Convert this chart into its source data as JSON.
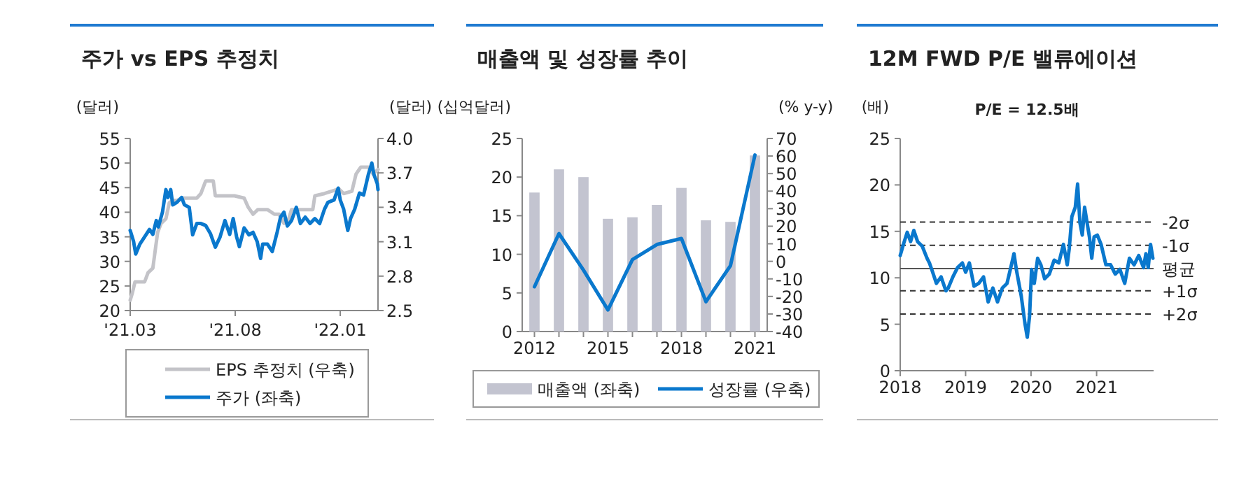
{
  "chart_data": [
    {
      "type": "line",
      "title": "주가 vs EPS 추정치",
      "ylabel": "(달러)",
      "y2label": "(달러)",
      "xlim": [
        "2021-03-01",
        "2022-02-25"
      ],
      "xticks": [
        {
          "value": "2021-03-01",
          "label": "'21.03"
        },
        {
          "value": "2021-08-01",
          "label": "'21.08"
        },
        {
          "value": "2022-01-01",
          "label": "'22.01"
        }
      ],
      "ylim": [
        20,
        55
      ],
      "yticks": [
        20,
        25,
        30,
        35,
        40,
        45,
        50,
        55
      ],
      "y2lim": [
        2.5,
        4.0
      ],
      "y2ticks": [
        2.5,
        2.8,
        3.1,
        3.4,
        3.7,
        {
          "value": 4.0,
          "label": "4.0"
        }
      ],
      "legend": "bottom",
      "grid": false,
      "marker": "none",
      "line_style": "solid",
      "series": [
        {
          "name": "EPS 추정치 (우축)",
          "color": "#c3c3c8",
          "axis": "y2",
          "x": [
            "2021-03-01",
            "2021-03-04",
            "2021-03-08",
            "2021-03-22",
            "2021-03-27",
            "2021-04-03",
            "2021-04-07",
            "2021-04-10",
            "2021-04-15",
            "2021-04-22",
            "2021-04-27",
            "2021-05-02",
            "2021-05-08",
            "2021-05-16",
            "2021-06-06",
            "2021-06-12",
            "2021-06-19",
            "2021-06-30",
            "2021-07-03",
            "2021-07-31",
            "2021-08-14",
            "2021-08-20",
            "2021-08-27",
            "2021-09-03",
            "2021-09-17",
            "2021-09-27",
            "2021-10-04",
            "2021-10-11",
            "2021-10-18",
            "2021-10-22",
            "2021-11-11",
            "2021-11-22",
            "2021-11-25",
            "2021-12-09",
            "2021-12-30",
            "2022-01-06",
            "2022-01-18",
            "2022-01-24",
            "2022-01-31",
            "2022-02-11",
            "2022-02-18",
            "2022-02-25"
          ],
          "values": [
            2.59,
            2.65,
            2.75,
            2.75,
            2.83,
            2.87,
            3.05,
            3.18,
            3.26,
            3.3,
            3.44,
            3.46,
            3.46,
            3.48,
            3.48,
            3.52,
            3.63,
            3.63,
            3.5,
            3.5,
            3.48,
            3.4,
            3.34,
            3.38,
            3.38,
            3.34,
            3.34,
            3.26,
            3.3,
            3.38,
            3.38,
            3.38,
            3.5,
            3.52,
            3.56,
            3.52,
            3.54,
            3.69,
            3.75,
            3.75,
            3.69,
            3.73
          ]
        },
        {
          "name": "주가 (좌축)",
          "color": "#0a78cd",
          "x": [
            "2021-03-01",
            "2021-03-06",
            "2021-03-09",
            "2021-03-15",
            "2021-03-22",
            "2021-03-29",
            "2021-04-03",
            "2021-04-08",
            "2021-04-11",
            "2021-04-17",
            "2021-04-22",
            "2021-04-25",
            "2021-04-29",
            "2021-05-02",
            "2021-05-08",
            "2021-05-15",
            "2021-05-19",
            "2021-05-26",
            "2021-05-31",
            "2021-06-06",
            "2021-06-12",
            "2021-06-19",
            "2021-06-26",
            "2021-07-03",
            "2021-07-10",
            "2021-07-17",
            "2021-07-24",
            "2021-07-29",
            "2021-08-03",
            "2021-08-07",
            "2021-08-14",
            "2021-08-21",
            "2021-08-27",
            "2021-09-02",
            "2021-09-07",
            "2021-09-10",
            "2021-09-17",
            "2021-09-24",
            "2021-10-01",
            "2021-10-06",
            "2021-10-11",
            "2021-10-16",
            "2021-10-22",
            "2021-10-29",
            "2021-11-04",
            "2021-11-11",
            "2021-11-18",
            "2021-11-25",
            "2021-12-02",
            "2021-12-09",
            "2021-12-14",
            "2021-12-23",
            "2021-12-29",
            "2022-01-01",
            "2022-01-06",
            "2022-01-12",
            "2022-01-16",
            "2022-01-22",
            "2022-01-29",
            "2022-02-04",
            "2022-02-11",
            "2022-02-16",
            "2022-02-19",
            "2022-02-24",
            "2022-02-25"
          ],
          "values": [
            36.3,
            34,
            31.5,
            33.5,
            35,
            36.5,
            35.5,
            38.3,
            37,
            40,
            44.6,
            43,
            44.6,
            41.5,
            42,
            43,
            41.5,
            41,
            35.4,
            37.7,
            37.7,
            37.3,
            35.6,
            32.9,
            35,
            38.3,
            35.5,
            38.7,
            35,
            33,
            36.8,
            35.4,
            35.9,
            34,
            30.6,
            33.5,
            33.5,
            32,
            35.9,
            39,
            40,
            37.2,
            38.3,
            41,
            37.7,
            39,
            37.7,
            38.7,
            37.7,
            40.6,
            42,
            42.5,
            44.9,
            42.5,
            40.6,
            36.3,
            38.7,
            40.6,
            43.9,
            43.5,
            47.7,
            50,
            47.7,
            45.8,
            44.6
          ]
        }
      ]
    },
    {
      "type": "bar",
      "title": "매출액 및 성장률 추이",
      "ylabel": "(십억달러)",
      "y2label": "(% y-y)",
      "categories": [
        "2012",
        null,
        null,
        "2015",
        null,
        null,
        "2018",
        null,
        null,
        "2021"
      ],
      "ylim": [
        0,
        25
      ],
      "yticks": [
        0,
        5,
        10,
        15,
        20,
        25
      ],
      "y2lim": [
        -40,
        70
      ],
      "y2ticks": [
        -40,
        -30,
        -20,
        -10,
        0,
        10,
        20,
        30,
        40,
        50,
        60,
        70
      ],
      "legend": "bottom",
      "grid": false,
      "marker": "none",
      "line_style": "solid",
      "series": [
        {
          "name": "매출액 (좌축)",
          "color": "#c3c4d0",
          "values": [
            18,
            21,
            20,
            14.6,
            14.8,
            16.4,
            18.6,
            14.4,
            14.2,
            22.8
          ]
        },
        {
          "name": "성장률 (우축)",
          "type": "line",
          "axis": "y2",
          "color": "#0a78cd",
          "values": [
            -14.5,
            15.8,
            -5,
            -27.7,
            1,
            9.6,
            13,
            -23,
            -2.5,
            60.6
          ]
        }
      ]
    },
    {
      "type": "line",
      "title": "12M FWD P/E 밸류에이션",
      "subtitle": "P/E = 12.5배",
      "ylabel": "(배)",
      "xlim": [
        "2018-01-01",
        "2021-11-15"
      ],
      "xticks": [
        {
          "value": "2018-01-01",
          "label": "2018"
        },
        {
          "value": "2019-01-01",
          "label": "2019"
        },
        {
          "value": "2020-01-01",
          "label": "2020"
        },
        {
          "value": "2021-01-01",
          "label": "2021"
        }
      ],
      "ylim": [
        0,
        25
      ],
      "yticks": [
        0,
        5,
        10,
        15,
        20,
        25
      ],
      "legend": false,
      "grid": false,
      "marker": "none",
      "line_style": "solid",
      "ref_lines": [
        {
          "axis": "y",
          "value": 16,
          "label": "-2σ",
          "color": "#333333",
          "line_style": "dashed"
        },
        {
          "axis": "y",
          "value": 13.5,
          "label": "-1σ",
          "color": "#333333",
          "line_style": "dashed"
        },
        {
          "axis": "y",
          "value": 11,
          "label": "평균",
          "color": "#555555",
          "line_style": "solid"
        },
        {
          "axis": "y",
          "value": 8.6,
          "label": "+1σ",
          "color": "#333333",
          "line_style": "dashed"
        },
        {
          "axis": "y",
          "value": 6.1,
          "label": "+2σ",
          "color": "#333333",
          "line_style": "dashed"
        }
      ],
      "series": [
        {
          "color": "#0a78cd",
          "x": [
            "2018-01-01",
            "2018-01-19",
            "2018-02-09",
            "2018-02-28",
            "2018-03-18",
            "2018-04-08",
            "2018-05-04",
            "2018-05-31",
            "2018-06-13",
            "2018-06-26",
            "2018-07-22",
            "2018-08-17",
            "2018-09-13",
            "2018-09-26",
            "2018-10-22",
            "2018-11-17",
            "2018-12-14",
            "2019-01-01",
            "2019-01-22",
            "2019-02-17",
            "2019-03-15",
            "2019-04-11",
            "2019-05-07",
            "2019-06-02",
            "2019-06-28",
            "2019-07-25",
            "2019-08-20",
            "2019-09-10",
            "2019-09-28",
            "2019-10-11",
            "2019-11-07",
            "2019-11-28",
            "2019-12-11",
            "2019-12-24",
            "2020-01-04",
            "2020-01-19",
            "2020-02-07",
            "2020-02-25",
            "2020-03-17",
            "2020-04-12",
            "2020-05-09",
            "2020-06-04",
            "2020-06-30",
            "2020-07-21",
            "2020-08-01",
            "2020-08-16",
            "2020-09-04",
            "2020-09-17",
            "2020-09-30",
            "2020-10-13",
            "2020-10-26",
            "2020-11-09",
            "2020-11-22",
            "2020-12-05",
            "2020-12-18",
            "2021-01-05",
            "2021-01-26",
            "2021-02-22",
            "2021-03-20",
            "2021-04-15",
            "2021-05-11",
            "2021-06-07",
            "2021-07-03",
            "2021-07-29",
            "2021-08-24",
            "2021-09-20",
            "2021-10-03",
            "2021-10-16",
            "2021-10-29",
            "2021-11-11"
          ],
          "values": [
            12.4,
            13.6,
            14.9,
            13.9,
            15.1,
            13.9,
            13.4,
            12.1,
            11.6,
            10.9,
            9.4,
            10.1,
            8.6,
            8.9,
            10.1,
            11.1,
            11.6,
            10.6,
            11.6,
            9.1,
            9.4,
            10.1,
            7.4,
            8.9,
            7.4,
            8.9,
            9.4,
            11.1,
            12.6,
            10.9,
            8.1,
            5.1,
            3.6,
            5.9,
            10.9,
            9.4,
            12.1,
            11.4,
            9.9,
            10.4,
            11.9,
            11.6,
            13.6,
            11.4,
            13.1,
            16.6,
            17.6,
            20.1,
            15.9,
            14.6,
            17.6,
            15.9,
            14.4,
            12.1,
            14.4,
            14.6,
            13.6,
            11.4,
            11.4,
            10.4,
            10.9,
            9.4,
            12.1,
            11.4,
            12.4,
            11.1,
            12.6,
            11.1,
            13.6,
            12.1
          ]
        }
      ]
    }
  ]
}
